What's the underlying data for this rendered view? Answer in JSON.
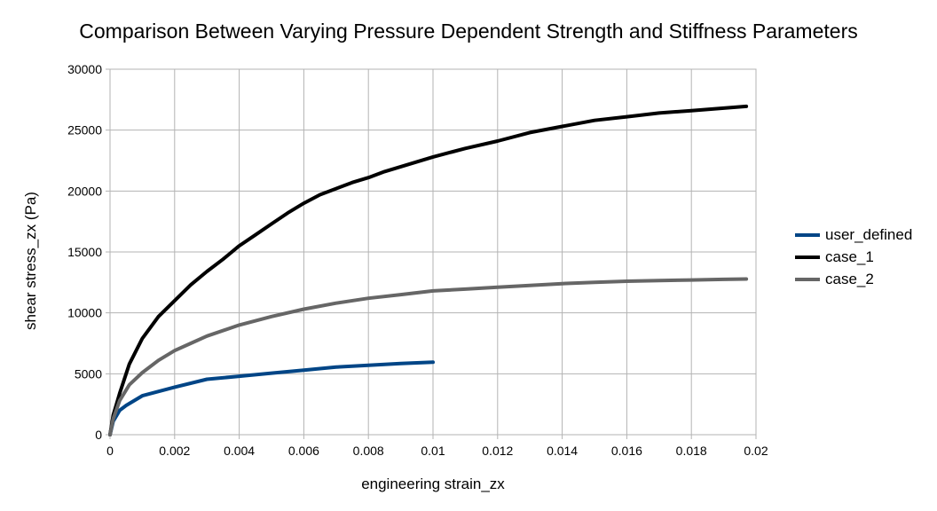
{
  "chart_data": {
    "type": "line",
    "title": "Comparison Between Varying Pressure Dependent Strength and Stiffness Parameters",
    "xlabel": "engineering strain_zx",
    "ylabel": "shear stress_zx (Pa)",
    "xlim": [
      0,
      0.02
    ],
    "ylim": [
      0,
      30000
    ],
    "xticks": [
      "0",
      "0.002",
      "0.004",
      "0.006",
      "0.008",
      "0.01",
      "0.012",
      "0.014",
      "0.016",
      "0.018",
      "0.02"
    ],
    "yticks": [
      "0",
      "5000",
      "10000",
      "15000",
      "20000",
      "25000",
      "30000"
    ],
    "grid": true,
    "legend_position": "right",
    "series": [
      {
        "name": "user_defined",
        "color": "#004586",
        "x": [
          0,
          0.0001,
          0.0003,
          0.0005,
          0.001,
          0.002,
          0.003,
          0.004,
          0.005,
          0.006,
          0.007,
          0.008,
          0.009,
          0.01
        ],
        "y": [
          0,
          1100,
          2000,
          2400,
          3200,
          3900,
          4550,
          4800,
          5050,
          5300,
          5550,
          5700,
          5850,
          5950
        ]
      },
      {
        "name": "case_1",
        "color": "#000000",
        "x": [
          0,
          0.0001,
          0.0003,
          0.0006,
          0.001,
          0.0015,
          0.002,
          0.0025,
          0.003,
          0.0035,
          0.004,
          0.0045,
          0.005,
          0.0055,
          0.006,
          0.0065,
          0.007,
          0.0075,
          0.008,
          0.0085,
          0.009,
          0.0095,
          0.01,
          0.011,
          0.012,
          0.013,
          0.014,
          0.015,
          0.016,
          0.017,
          0.018,
          0.019,
          0.0197
        ],
        "y": [
          0,
          1600,
          3400,
          5800,
          7900,
          9700,
          11000,
          12300,
          13400,
          14400,
          15500,
          16400,
          17300,
          18200,
          19000,
          19700,
          20200,
          20700,
          21100,
          21600,
          22000,
          22400,
          22800,
          23500,
          24100,
          24800,
          25300,
          25800,
          26100,
          26400,
          26600,
          26800,
          26950
        ]
      },
      {
        "name": "case_2",
        "color": "#666666",
        "x": [
          0,
          0.0001,
          0.0003,
          0.0006,
          0.001,
          0.0015,
          0.002,
          0.0025,
          0.003,
          0.004,
          0.005,
          0.006,
          0.007,
          0.008,
          0.009,
          0.01,
          0.011,
          0.012,
          0.013,
          0.014,
          0.015,
          0.016,
          0.017,
          0.018,
          0.019,
          0.0197
        ],
        "y": [
          0,
          1300,
          2800,
          4100,
          5100,
          6100,
          6900,
          7500,
          8100,
          9000,
          9700,
          10300,
          10800,
          11200,
          11500,
          11800,
          11950,
          12100,
          12250,
          12400,
          12500,
          12600,
          12650,
          12700,
          12750,
          12780
        ]
      }
    ]
  }
}
